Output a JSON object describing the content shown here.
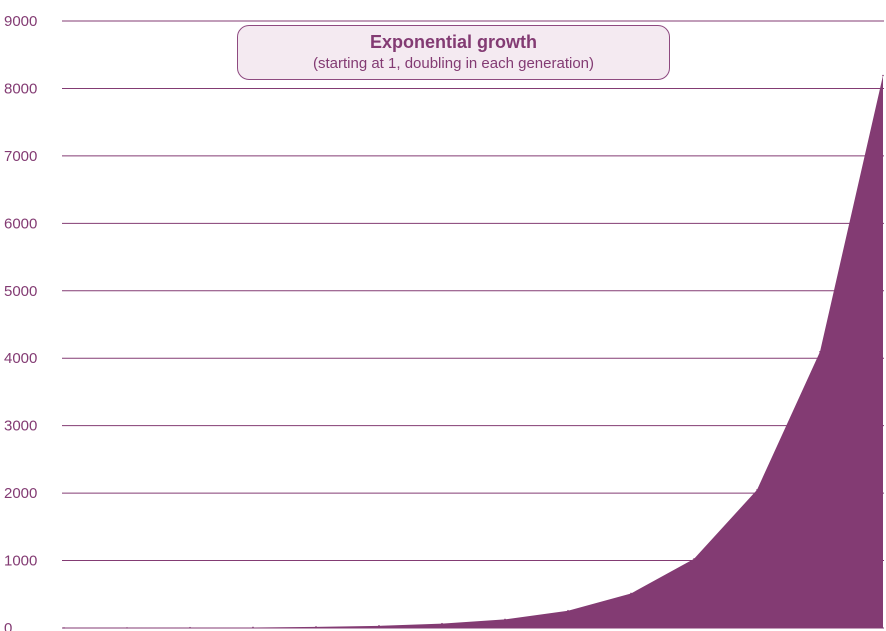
{
  "colors": {
    "accent": "#833b73",
    "gridline": "#833b73",
    "text": "#833b73",
    "title_box_bg": "#f4eaf1"
  },
  "chart_data": {
    "type": "area",
    "title": "Exponential growth",
    "subtitle": "(starting at 1, doubling in each generation)",
    "xlabel": "",
    "ylabel": "",
    "x": [
      1,
      2,
      3,
      4,
      5,
      6,
      7,
      8,
      9,
      10,
      11,
      12,
      13,
      14
    ],
    "series": [
      {
        "values": [
          1,
          2,
          4,
          8,
          16,
          32,
          64,
          128,
          256,
          512,
          1024,
          2048,
          4096,
          8192
        ]
      }
    ],
    "ylim": [
      0,
      9000
    ],
    "yticks": [
      0,
      1000,
      2000,
      3000,
      4000,
      5000,
      6000,
      7000,
      8000,
      9000
    ],
    "ytick_labels": [
      "0",
      "1000",
      "2000",
      "3000",
      "4000",
      "5000",
      "6000",
      "7000",
      "8000",
      "9000"
    ],
    "grid": true,
    "legend": "none"
  }
}
